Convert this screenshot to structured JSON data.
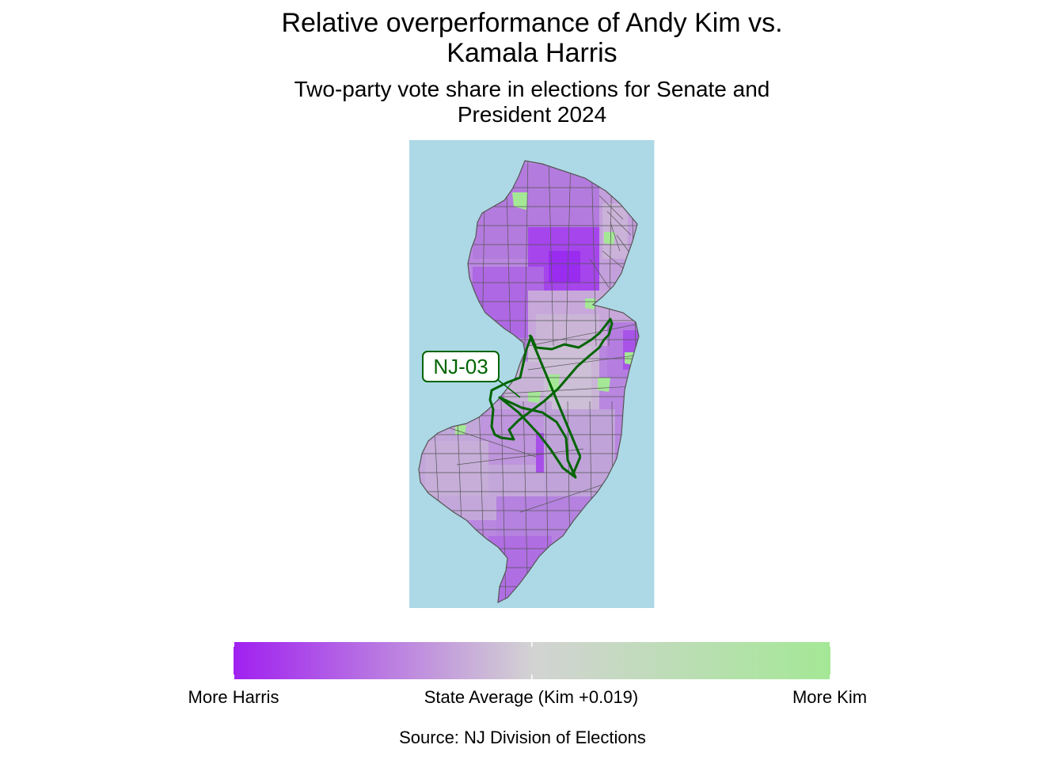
{
  "title": {
    "line1": "Relative overperformance of Andy Kim vs.",
    "line2": "Kamala Harris"
  },
  "subtitle": {
    "line1": "Two-party vote share in elections for Senate and",
    "line2": "President 2024"
  },
  "map": {
    "region": "New Jersey",
    "unit": "municipality",
    "highlighted_district": "NJ-03",
    "colors": {
      "water": "#add8e6",
      "district_outline": "#006400",
      "boundary": "#555555"
    }
  },
  "legend": {
    "label_low": "More Harris",
    "label_mid": "State Average (Kim +0.019)",
    "label_high": "More Kim",
    "colors": [
      "#a020f0",
      "#d3d3d3",
      "#a4e896"
    ]
  },
  "caption": "Source: NJ Division of Elections"
}
